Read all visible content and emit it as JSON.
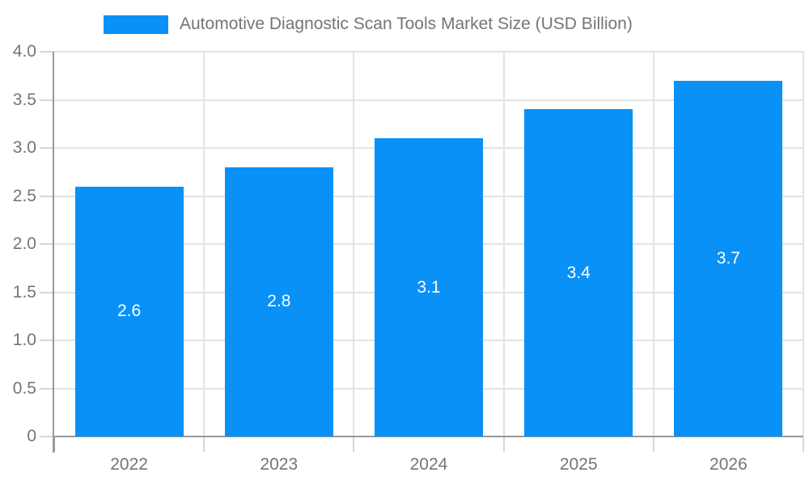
{
  "chart_data": {
    "type": "bar",
    "title": "Automotive Diagnostic Scan Tools Market Size (USD Billion)",
    "categories": [
      "2022",
      "2023",
      "2024",
      "2025",
      "2026"
    ],
    "values": [
      2.6,
      2.8,
      3.1,
      3.4,
      3.7
    ],
    "value_labels": [
      "2.6",
      "2.8",
      "3.1",
      "3.4",
      "3.7"
    ],
    "xlabel": "",
    "ylabel": "",
    "ylim": [
      0,
      4.0
    ],
    "ytick_step": 0.5,
    "ytick_labels": [
      "0",
      "0.5",
      "1.0",
      "1.5",
      "2.0",
      "2.5",
      "3.0",
      "3.5",
      "4.0"
    ],
    "grid": true,
    "legend_position": "top"
  },
  "colors": {
    "bar": "#0991f8",
    "bar_label": "#ffffff",
    "axis": "#999999",
    "grid": "#e3e3e3",
    "tick": "#d6d6d6",
    "text": "#757575",
    "background": "#ffffff"
  }
}
